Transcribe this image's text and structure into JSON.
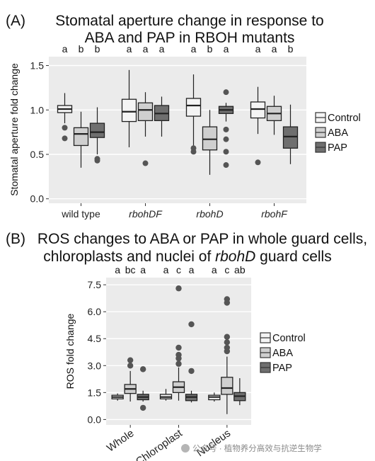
{
  "panelA": {
    "label": "(A)",
    "title_line1": "Stomatal aperture change in response to",
    "title_line2": "ABA and PAP in RBOH mutants",
    "ylabel": "Stomatal aperture fold change",
    "yticks": [
      "0.0",
      "0.5",
      "1.0",
      "1.5"
    ],
    "legend": [
      "Control",
      "ABA",
      "PAP"
    ]
  },
  "panelB": {
    "label": "(B)",
    "title_line1": "ROS changes to ABA or PAP in whole guard cells,",
    "title_line2_pre": "chloroplasts and nuclei of ",
    "title_line2_ital": "rbohD",
    "title_line2_post": " guard cells",
    "ylabel": "ROS fold change",
    "yticks": [
      "0.0",
      "1.5",
      "3.0",
      "4.5",
      "6.0",
      "7.5"
    ],
    "legend": [
      "Control",
      "ABA",
      "PAP"
    ]
  },
  "colors": {
    "Control": "#f4f4f4",
    "ABA": "#cfcfcf",
    "PAP": "#6f6f6f",
    "panel_bg": "#ebebeb",
    "outlier": "#555555"
  },
  "watermark": "公众号 · 植物养分高效与抗逆生物学",
  "chart_data": [
    {
      "type": "boxplot",
      "title": "Stomatal aperture change in response to ABA and PAP in RBOH mutants",
      "ylabel": "Stomatal aperture fold change",
      "ylim": [
        -0.05,
        1.6
      ],
      "categories": [
        "wild type",
        "rbohDF",
        "rbohD",
        "rbohF"
      ],
      "series_names": [
        "Control",
        "ABA",
        "PAP"
      ],
      "groups": [
        {
          "category": "wild type",
          "significance": [
            "a",
            "b",
            "b"
          ],
          "boxes": [
            {
              "series": "Control",
              "whisker_low": 0.85,
              "q1": 0.97,
              "median": 1.01,
              "q3": 1.05,
              "whisker_high": 1.19,
              "outliers": [
                0.8,
                0.68
              ]
            },
            {
              "series": "ABA",
              "whisker_low": 0.35,
              "q1": 0.6,
              "median": 0.73,
              "q3": 0.8,
              "whisker_high": 0.98,
              "outliers": []
            },
            {
              "series": "PAP",
              "whisker_low": 0.5,
              "q1": 0.69,
              "median": 0.75,
              "q3": 0.85,
              "whisker_high": 1.03,
              "outliers": [
                0.45,
                0.43
              ]
            }
          ]
        },
        {
          "category": "rbohDF",
          "significance": [
            "a",
            "a",
            "a"
          ],
          "boxes": [
            {
              "series": "Control",
              "whisker_low": 0.58,
              "q1": 0.87,
              "median": 0.98,
              "q3": 1.12,
              "whisker_high": 1.45,
              "outliers": []
            },
            {
              "series": "ABA",
              "whisker_low": 0.7,
              "q1": 0.88,
              "median": 1.0,
              "q3": 1.08,
              "whisker_high": 1.2,
              "outliers": [
                0.4
              ]
            },
            {
              "series": "PAP",
              "whisker_low": 0.7,
              "q1": 0.88,
              "median": 0.96,
              "q3": 1.05,
              "whisker_high": 1.15,
              "outliers": []
            }
          ]
        },
        {
          "category": "rbohD",
          "significance": [
            "a",
            "b",
            "a"
          ],
          "boxes": [
            {
              "series": "Control",
              "whisker_low": 0.6,
              "q1": 0.93,
              "median": 1.05,
              "q3": 1.13,
              "whisker_high": 1.4,
              "outliers": [
                0.57,
                0.53
              ]
            },
            {
              "series": "ABA",
              "whisker_low": 0.27,
              "q1": 0.55,
              "median": 0.67,
              "q3": 0.81,
              "whisker_high": 1.0,
              "outliers": []
            },
            {
              "series": "PAP",
              "whisker_low": 0.87,
              "q1": 0.96,
              "median": 1.0,
              "q3": 1.04,
              "whisker_high": 1.08,
              "outliers": [
                1.2,
                0.78,
                0.67,
                0.53,
                0.38
              ]
            }
          ]
        },
        {
          "category": "rbohF",
          "significance": [
            "a",
            "a",
            "b"
          ],
          "boxes": [
            {
              "series": "Control",
              "whisker_low": 0.73,
              "q1": 0.91,
              "median": 1.01,
              "q3": 1.09,
              "whisker_high": 1.26,
              "outliers": [
                0.41
              ]
            },
            {
              "series": "ABA",
              "whisker_low": 0.72,
              "q1": 0.88,
              "median": 0.96,
              "q3": 1.04,
              "whisker_high": 1.16,
              "outliers": []
            },
            {
              "series": "PAP",
              "whisker_low": 0.39,
              "q1": 0.57,
              "median": 0.7,
              "q3": 0.81,
              "whisker_high": 1.06,
              "outliers": []
            }
          ]
        }
      ]
    },
    {
      "type": "boxplot",
      "title": "ROS changes to ABA or PAP in whole guard cells, chloroplasts and nuclei of rbohD guard cells",
      "ylabel": "ROS fold change",
      "ylim": [
        -0.3,
        7.9
      ],
      "categories": [
        "Whole",
        "Chloroplast",
        "Nucleus"
      ],
      "series_names": [
        "Control",
        "ABA",
        "PAP"
      ],
      "groups": [
        {
          "category": "Whole",
          "significance": [
            "a",
            "bc",
            "a"
          ],
          "boxes": [
            {
              "series": "Control",
              "whisker_low": 1.05,
              "q1": 1.15,
              "median": 1.25,
              "q3": 1.35,
              "whisker_high": 1.45,
              "outliers": []
            },
            {
              "series": "ABA",
              "whisker_low": 1.0,
              "q1": 1.45,
              "median": 1.7,
              "q3": 1.95,
              "whisker_high": 2.7,
              "outliers": [
                3.3,
                3.0
              ]
            },
            {
              "series": "PAP",
              "whisker_low": 1.0,
              "q1": 1.1,
              "median": 1.25,
              "q3": 1.4,
              "whisker_high": 1.6,
              "outliers": [
                2.8,
                0.65
              ]
            }
          ]
        },
        {
          "category": "Chloroplast",
          "significance": [
            "a",
            "c",
            "a"
          ],
          "boxes": [
            {
              "series": "Control",
              "whisker_low": 1.05,
              "q1": 1.15,
              "median": 1.25,
              "q3": 1.4,
              "whisker_high": 1.7,
              "outliers": []
            },
            {
              "series": "ABA",
              "whisker_low": 1.05,
              "q1": 1.5,
              "median": 1.8,
              "q3": 2.1,
              "whisker_high": 2.9,
              "outliers": [
                7.3,
                4.0,
                3.6,
                3.4,
                3.1
              ]
            },
            {
              "series": "PAP",
              "whisker_low": 0.95,
              "q1": 1.05,
              "median": 1.25,
              "q3": 1.4,
              "whisker_high": 1.6,
              "outliers": [
                5.3,
                2.7
              ]
            }
          ]
        },
        {
          "category": "Nucleus",
          "significance": [
            "a",
            "c",
            "ab"
          ],
          "boxes": [
            {
              "series": "Control",
              "whisker_low": 1.0,
              "q1": 1.1,
              "median": 1.25,
              "q3": 1.35,
              "whisker_high": 1.5,
              "outliers": []
            },
            {
              "series": "ABA",
              "whisker_low": 0.3,
              "q1": 1.4,
              "median": 1.75,
              "q3": 2.35,
              "whisker_high": 3.5,
              "outliers": [
                6.7,
                6.5,
                4.6,
                4.3,
                4.0,
                3.8
              ]
            },
            {
              "series": "PAP",
              "whisker_low": 0.8,
              "q1": 1.05,
              "median": 1.3,
              "q3": 1.5,
              "whisker_high": 2.3,
              "outliers": []
            }
          ]
        }
      ]
    }
  ]
}
